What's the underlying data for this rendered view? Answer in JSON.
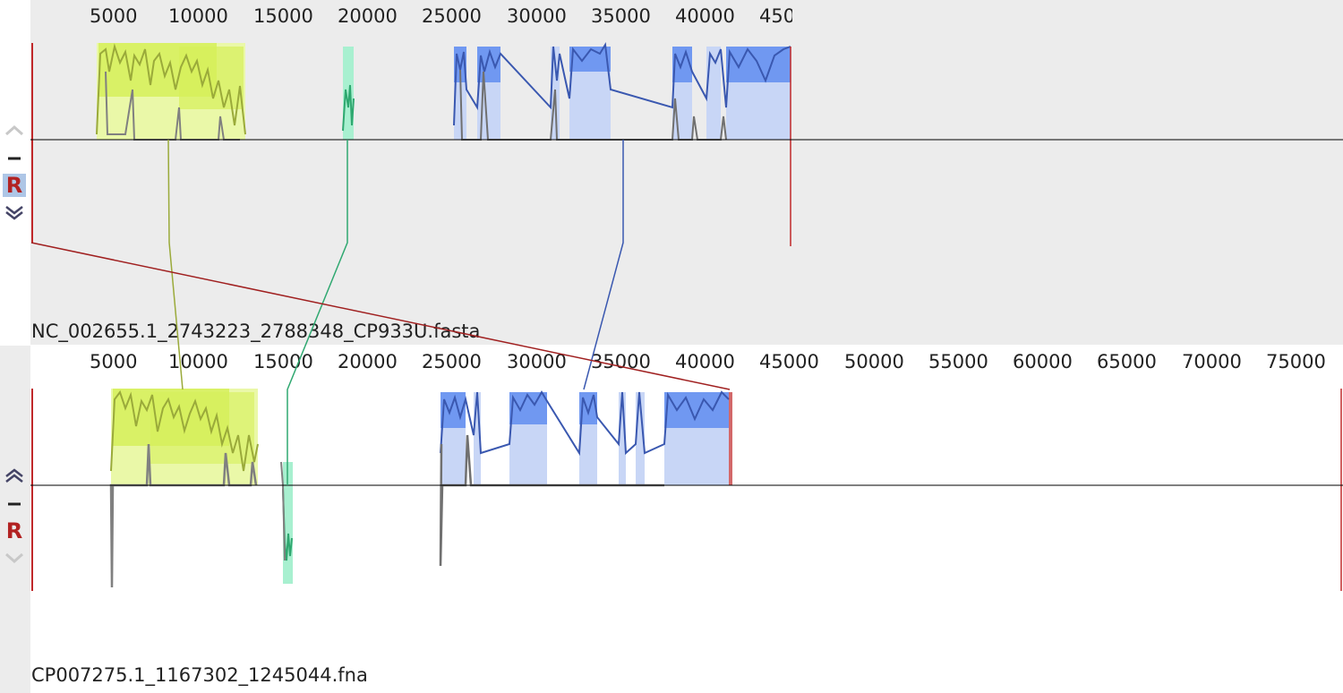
{
  "genomes": [
    {
      "id": "top",
      "name": "NC_002655.1_2743223_2788348_CP933U.fasta",
      "ruler_ticks": [
        "5000",
        "10000",
        "15000",
        "20000",
        "25000",
        "30000",
        "35000",
        "40000",
        "450"
      ],
      "controls": [
        "move-up",
        "remove",
        "reverse",
        "move-down"
      ]
    },
    {
      "id": "bottom",
      "name": "CP007275.1_1167302_1245044.fna",
      "ruler_ticks": [
        "5000",
        "10000",
        "15000",
        "20000",
        "25000",
        "30000",
        "35000",
        "40000",
        "45000",
        "50000",
        "55000",
        "60000",
        "65000",
        "70000",
        "75000"
      ],
      "controls": [
        "move-up",
        "remove",
        "reverse",
        "move-down"
      ]
    }
  ],
  "control_labels": {
    "reverse": "R"
  },
  "colors": {
    "panel_bg": "#ececec",
    "lcb_yellow": "#d6f05a",
    "lcb_yellow_line": "#9aaa3a",
    "lcb_green": "#5ee8a8",
    "lcb_green_line": "#2fa870",
    "lcb_blue": "#5a88f0",
    "lcb_blue_line": "#3a58b0",
    "lcb_red": "#c0282a",
    "gap_gray": "#808080",
    "axis": "#000000"
  }
}
